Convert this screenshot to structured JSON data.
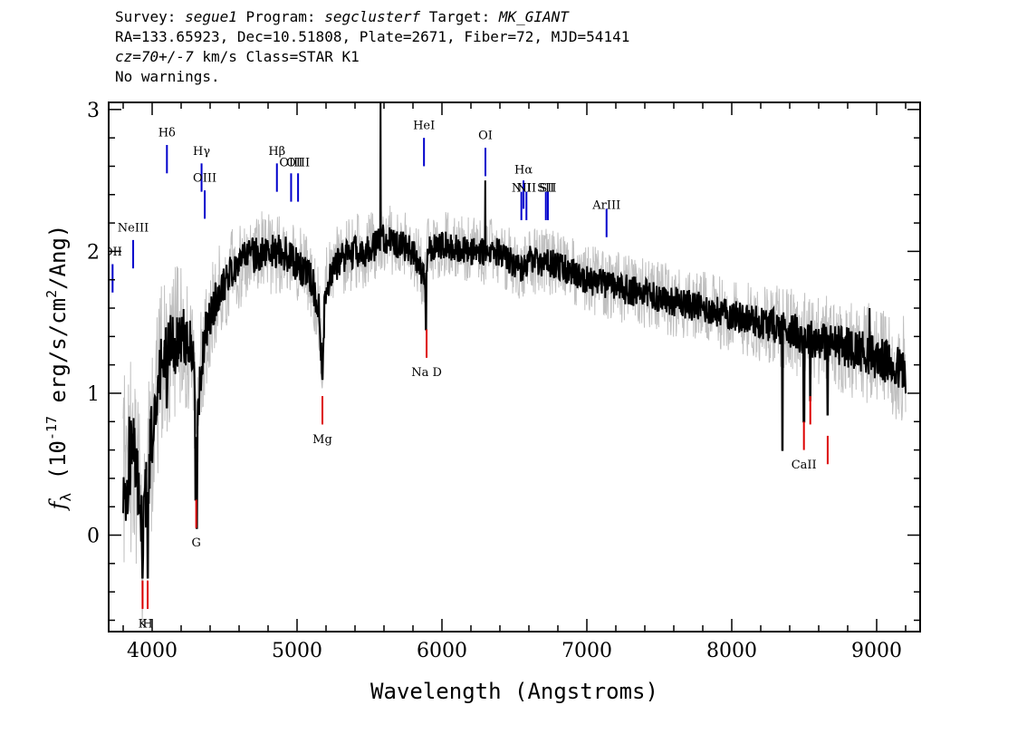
{
  "header": {
    "line1": {
      "survey_label": "Survey: ",
      "survey": "segue1",
      "program_label": " Program: ",
      "program": "segclusterf",
      "target_label": " Target: ",
      "target": "MK_GIANT"
    },
    "line2": "RA=133.65923, Dec=10.51808, Plate=2671, Fiber=72, MJD=54141",
    "line3": {
      "cz_label": "cz",
      "cz_value": "=70+/-7",
      "rest": " km/s Class=STAR K1"
    },
    "line4": "No warnings."
  },
  "chart_data": {
    "type": "line",
    "xlabel": "Wavelength (Angstroms)",
    "ylabel": "f_λ (10^-17 erg/s/cm^2/Ang)",
    "xlim": [
      3700,
      9300
    ],
    "ylim": [
      -0.68,
      3.05
    ],
    "x_ticks": [
      4000,
      5000,
      6000,
      7000,
      8000,
      9000
    ],
    "y_ticks": [
      0,
      1,
      2,
      3
    ],
    "grid": false,
    "legend": "none",
    "colors": {
      "flux": "#000000",
      "error": "#c0c0c0",
      "emission": "#0000cc",
      "absorption": "#dd0000"
    },
    "flux_anchors": {
      "x": [
        3820,
        3850,
        3880,
        3900,
        3930,
        3960,
        3990,
        4030,
        4100,
        4200,
        4280,
        4310,
        4330,
        4380,
        4450,
        4550,
        4650,
        4800,
        4900,
        5000,
        5100,
        5150,
        5170,
        5180,
        5200,
        5300,
        5400,
        5500,
        5600,
        5700,
        5800,
        5890,
        5900,
        6000,
        6200,
        6400,
        6560,
        6600,
        6800,
        7000,
        7200,
        7400,
        7600,
        7800,
        8000,
        8200,
        8400,
        8500,
        8700,
        8900,
        9000,
        9100,
        9200
      ],
      "y": [
        0.4,
        0.6,
        0.5,
        0.3,
        0.0,
        0.3,
        0.6,
        1.0,
        1.3,
        1.4,
        1.3,
        0.6,
        1.1,
        1.5,
        1.7,
        1.85,
        1.95,
        2.0,
        2.0,
        1.9,
        1.8,
        1.6,
        1.2,
        1.4,
        1.75,
        1.95,
        2.0,
        2.0,
        2.1,
        2.05,
        2.0,
        1.8,
        2.0,
        2.05,
        2.0,
        2.0,
        1.85,
        1.95,
        1.9,
        1.8,
        1.75,
        1.7,
        1.65,
        1.6,
        1.55,
        1.5,
        1.45,
        1.4,
        1.35,
        1.3,
        1.25,
        1.2,
        1.15
      ]
    },
    "absorption_dips": [
      {
        "x": 3934,
        "y": -0.3
      },
      {
        "x": 3969,
        "y": -0.3
      },
      {
        "x": 4101,
        "y": 0.9
      },
      {
        "x": 4300,
        "y": 0.25
      },
      {
        "x": 4308,
        "y": 0.05
      },
      {
        "x": 5175,
        "y": 1.1
      },
      {
        "x": 5890,
        "y": 1.45
      },
      {
        "x": 8350,
        "y": 0.6
      },
      {
        "x": 8498,
        "y": 0.8
      },
      {
        "x": 8542,
        "y": 0.95
      },
      {
        "x": 8662,
        "y": 0.85
      }
    ],
    "flux_spikes": [
      {
        "x": 5577,
        "y": 3.05
      },
      {
        "x": 6300,
        "y": 2.5
      },
      {
        "x": 8950,
        "y": 1.6
      }
    ],
    "error_band_width_anchors": {
      "x": [
        3800,
        4000,
        4300,
        4500,
        6000,
        8000,
        9200
      ],
      "w": [
        0.6,
        0.5,
        0.35,
        0.25,
        0.18,
        0.2,
        0.3
      ]
    },
    "spectral_lines": [
      {
        "label": "OII",
        "x": 3727,
        "y0": 1.71,
        "y1": 1.91,
        "type": "emission",
        "label_y": 1.97
      },
      {
        "label": "NeIII",
        "x": 3869,
        "y0": 1.88,
        "y1": 2.08,
        "type": "emission",
        "label_y": 2.14
      },
      {
        "label": "Hδ",
        "x": 4102,
        "y0": 2.55,
        "y1": 2.75,
        "type": "emission",
        "label_y": 2.81
      },
      {
        "label": "Hγ",
        "x": 4341,
        "y0": 2.42,
        "y1": 2.62,
        "type": "emission",
        "label_y": 2.68
      },
      {
        "label": "OIII",
        "x": 4363,
        "y0": 2.23,
        "y1": 2.43,
        "type": "emission",
        "label_y": 2.49
      },
      {
        "label": "Hβ",
        "x": 4861,
        "y0": 2.42,
        "y1": 2.62,
        "type": "emission",
        "label_y": 2.68
      },
      {
        "label": "OIII",
        "x": 4959,
        "y0": 2.35,
        "y1": 2.55,
        "type": "emission",
        "label_y": 2.6
      },
      {
        "label": "OIII",
        "x": 5007,
        "y0": 2.35,
        "y1": 2.55,
        "type": "emission",
        "label_y": 2.6
      },
      {
        "label": "HeI",
        "x": 5876,
        "y0": 2.6,
        "y1": 2.8,
        "type": "emission",
        "label_y": 2.86
      },
      {
        "label": "OI",
        "x": 6300,
        "y0": 2.53,
        "y1": 2.73,
        "type": "emission",
        "label_y": 2.79
      },
      {
        "label": "NII",
        "x": 6548,
        "y0": 2.22,
        "y1": 2.42,
        "type": "emission",
        "label_y": 2.42
      },
      {
        "label": "Hα",
        "x": 6563,
        "y0": 2.3,
        "y1": 2.5,
        "type": "emission",
        "label_y": 2.55
      },
      {
        "label": "NII",
        "x": 6583,
        "y0": 2.22,
        "y1": 2.42,
        "type": "emission",
        "label_y": 2.42
      },
      {
        "label": "SII",
        "x": 6717,
        "y0": 2.22,
        "y1": 2.42,
        "type": "emission",
        "label_y": 2.42
      },
      {
        "label": "SII",
        "x": 6731,
        "y0": 2.22,
        "y1": 2.42,
        "type": "emission",
        "label_y": 2.42
      },
      {
        "label": "ArIII",
        "x": 7136,
        "y0": 2.1,
        "y1": 2.3,
        "type": "emission",
        "label_y": 2.3
      },
      {
        "label": "K",
        "x": 3934,
        "y0": -0.52,
        "y1": -0.32,
        "type": "absorption",
        "label_y": -0.65
      },
      {
        "label": "H",
        "x": 3969,
        "y0": -0.52,
        "y1": -0.32,
        "type": "absorption",
        "label_y": -0.65
      },
      {
        "label": "G",
        "x": 4304,
        "y0": 0.05,
        "y1": 0.25,
        "type": "absorption",
        "label_y": -0.08
      },
      {
        "label": "Mg",
        "x": 5175,
        "y0": 0.78,
        "y1": 0.98,
        "type": "absorption",
        "label_y": 0.65
      },
      {
        "label": "Na D",
        "x": 5894,
        "y0": 1.25,
        "y1": 1.45,
        "type": "absorption",
        "label_y": 1.12
      },
      {
        "label": "CaII",
        "x": 8498,
        "y0": 0.6,
        "y1": 0.8,
        "type": "absorption",
        "label_y": 0.47
      },
      {
        "label": "CaII",
        "x": 8542,
        "y0": 0.78,
        "y1": 0.98,
        "type": "absorption",
        "label_y": 0.65,
        "no_label": true
      },
      {
        "label": "CaII",
        "x": 8662,
        "y0": 0.5,
        "y1": 0.7,
        "type": "absorption",
        "label_y": 0.37,
        "no_label": true
      }
    ]
  }
}
